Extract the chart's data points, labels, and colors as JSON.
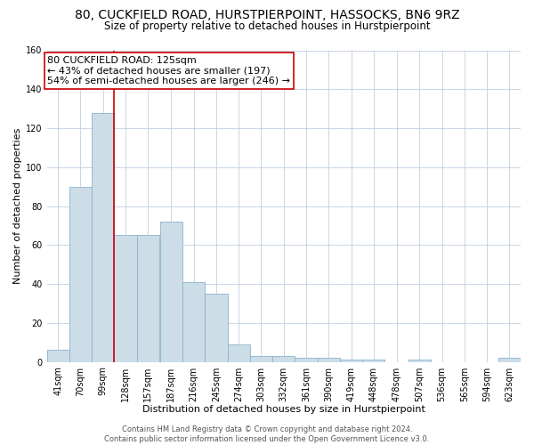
{
  "title": "80, CUCKFIELD ROAD, HURSTPIERPOINT, HASSOCKS, BN6 9RZ",
  "subtitle": "Size of property relative to detached houses in Hurstpierpoint",
  "xlabel": "Distribution of detached houses by size in Hurstpierpoint",
  "ylabel": "Number of detached properties",
  "bar_color": "#ccdde8",
  "bar_edgecolor": "#8ab4cc",
  "annotation_line_color": "#cc0000",
  "annotation_box_edgecolor": "#cc0000",
  "annotation_text": "80 CUCKFIELD ROAD: 125sqm\n← 43% of detached houses are smaller (197)\n54% of semi-detached houses are larger (246) →",
  "property_line_x": 128,
  "categories": [
    "41sqm",
    "70sqm",
    "99sqm",
    "128sqm",
    "157sqm",
    "187sqm",
    "216sqm",
    "245sqm",
    "274sqm",
    "303sqm",
    "332sqm",
    "361sqm",
    "390sqm",
    "419sqm",
    "448sqm",
    "478sqm",
    "507sqm",
    "536sqm",
    "565sqm",
    "594sqm",
    "623sqm"
  ],
  "values": [
    6,
    90,
    128,
    65,
    65,
    72,
    41,
    35,
    9,
    3,
    3,
    2,
    2,
    1,
    1,
    0,
    1,
    0,
    0,
    0,
    2
  ],
  "bin_starts": [
    41,
    70,
    99,
    128,
    157,
    187,
    216,
    245,
    274,
    303,
    332,
    361,
    390,
    419,
    448,
    478,
    507,
    536,
    565,
    594,
    623
  ],
  "bin_width": 29,
  "ylim": [
    0,
    160
  ],
  "yticks": [
    0,
    20,
    40,
    60,
    80,
    100,
    120,
    140,
    160
  ],
  "background_color": "#ffffff",
  "grid_color": "#c0d0e0",
  "footer_text": "Contains HM Land Registry data © Crown copyright and database right 2024.\nContains public sector information licensed under the Open Government Licence v3.0.",
  "title_fontsize": 10,
  "subtitle_fontsize": 8.5,
  "xlabel_fontsize": 8,
  "ylabel_fontsize": 8,
  "tick_fontsize": 7,
  "annotation_fontsize": 8,
  "footer_fontsize": 6
}
